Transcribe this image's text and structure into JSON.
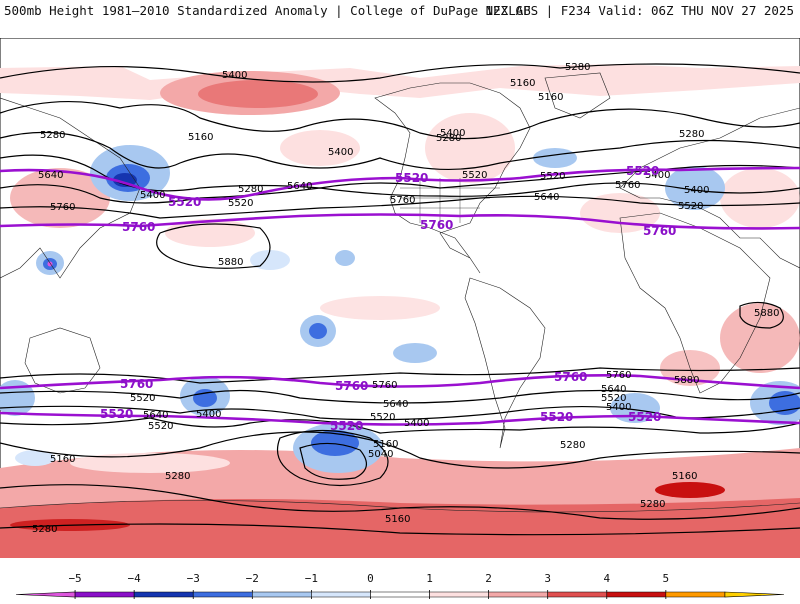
{
  "header": {
    "title_left": "500mb Height 1981–2010 Standardized Anomaly | College of DuPage NEXLAB",
    "title_right": "12Z GFS | F234 Valid: 06Z THU NOV 27 2025"
  },
  "colors": {
    "contour": "#000000",
    "purple_contour": "#9a10d0",
    "background": "#ffffff",
    "coast": "#222222"
  },
  "contour_labels": [
    "5400",
    "5280",
    "5160",
    "5280",
    "5160",
    "5400",
    "5640",
    "5280",
    "5520",
    "5400",
    "5760",
    "5880",
    "5520",
    "5400",
    "5520",
    "5280",
    "5640",
    "5760",
    "5160",
    "5400",
    "5280",
    "5640",
    "5760",
    "5520",
    "5400",
    "5880",
    "5880",
    "5760",
    "5640",
    "5520",
    "5400",
    "5520",
    "5640",
    "5760",
    "5400",
    "5520",
    "5640",
    "5400",
    "5520",
    "5160",
    "5040",
    "5160",
    "5280",
    "5160",
    "5280",
    "5160",
    "5280",
    "5280"
  ],
  "purple_labels": [
    "5520",
    "5760",
    "5520",
    "5760",
    "5520",
    "5760",
    "5760",
    "5520",
    "5760",
    "5520",
    "5520",
    "5520",
    "5760"
  ],
  "legend": {
    "ticks": [
      "−5",
      "−4",
      "−3",
      "−2",
      "−1",
      "0",
      "1",
      "2",
      "3",
      "4",
      "5"
    ],
    "colors": [
      "#dd55dd",
      "#8a10c8",
      "#1535b0",
      "#3d6ee0",
      "#a8c8f0",
      "#d6e6fb",
      "#ffffff",
      "#fde0e0",
      "#f3a8a8",
      "#e05050",
      "#c81010",
      "#ff9a00",
      "#ffd000"
    ]
  }
}
